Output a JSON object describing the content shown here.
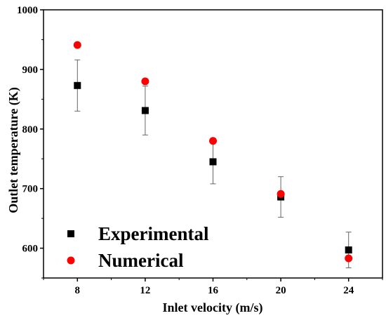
{
  "chart_data": {
    "type": "scatter",
    "xlabel": "Inlet velocity (m/s)",
    "ylabel": "Outlet temperature (K)",
    "xlim": [
      6,
      26
    ],
    "ylim": [
      550,
      1000
    ],
    "xticks": [
      8,
      12,
      16,
      20,
      24
    ],
    "yticks": [
      600,
      700,
      800,
      900,
      1000
    ],
    "legend_position": "bottom-left",
    "series": [
      {
        "name": "Experimental",
        "marker": "square",
        "color": "#000000",
        "x": [
          8,
          12,
          16,
          20,
          24
        ],
        "y": [
          873,
          831,
          745,
          686,
          597
        ],
        "error": [
          43,
          41,
          37,
          34,
          30
        ]
      },
      {
        "name": "Numerical",
        "marker": "circle",
        "color": "#ff0000",
        "x": [
          8,
          12,
          16,
          20,
          24
        ],
        "y": [
          941,
          880,
          780,
          691,
          583
        ]
      }
    ]
  }
}
